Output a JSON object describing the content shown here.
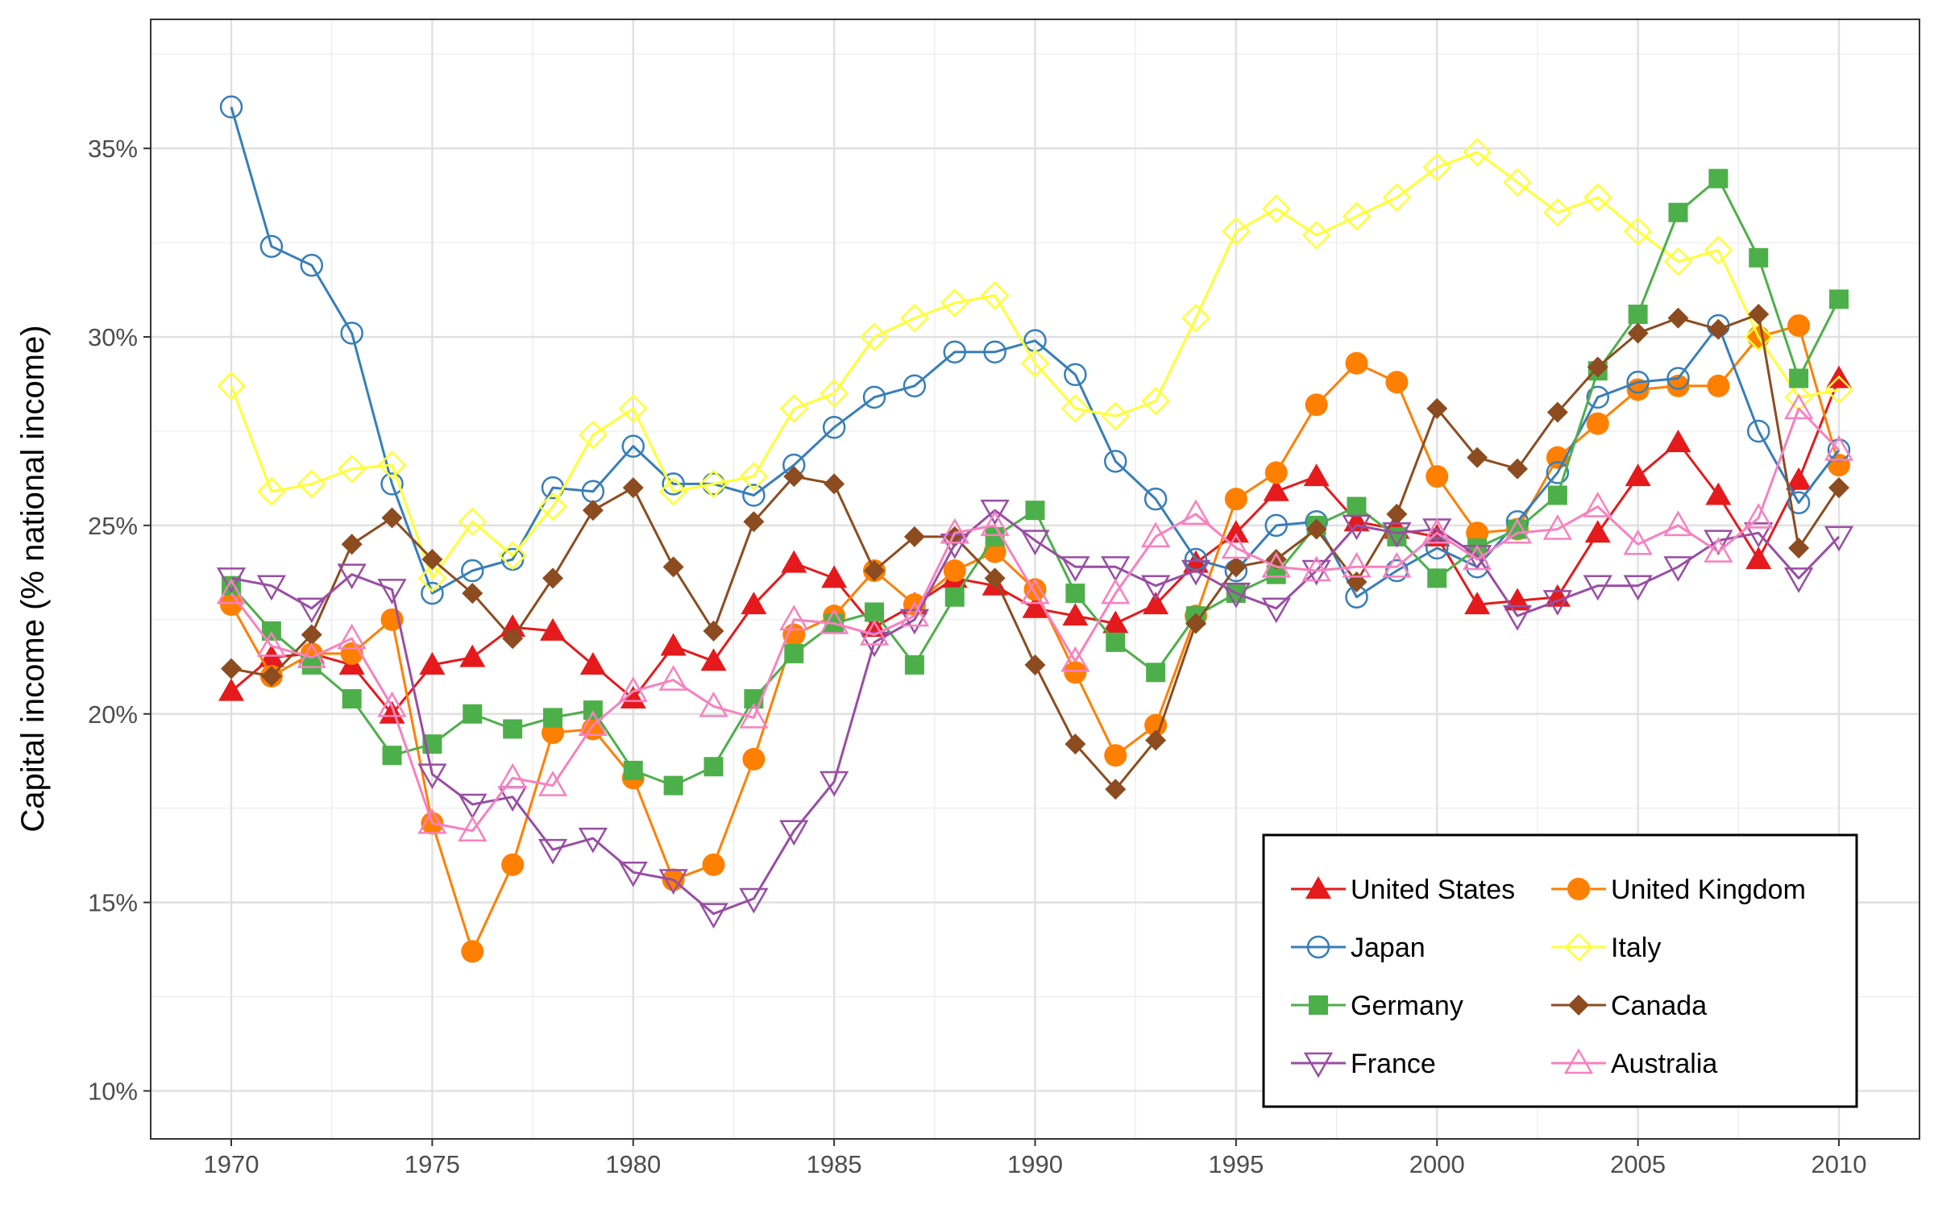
{
  "chart_data": {
    "type": "line",
    "title": "",
    "xlabel": "",
    "ylabel": "Capital income (% national income)",
    "xlim": [
      1968,
      2011
    ],
    "ylim": [
      9.0,
      38.0
    ],
    "x_ticks": [
      1970,
      1975,
      1980,
      1985,
      1990,
      1995,
      2000,
      2005,
      2010
    ],
    "x_tick_labels": [
      "1970",
      "1975",
      "1980",
      "1985",
      "1990",
      "1995",
      "2000",
      "2005",
      "2010"
    ],
    "y_ticks": [
      10,
      15,
      20,
      25,
      30,
      35
    ],
    "y_tick_labels": [
      "10%",
      "15%",
      "20%",
      "25%",
      "30%",
      "35%"
    ],
    "grid": true,
    "legend_position": "bottom-right",
    "x": [
      1970,
      1971,
      1972,
      1973,
      1974,
      1975,
      1976,
      1977,
      1978,
      1979,
      1980,
      1981,
      1982,
      1983,
      1984,
      1985,
      1986,
      1987,
      1988,
      1989,
      1990,
      1991,
      1992,
      1993,
      1994,
      1995,
      1996,
      1997,
      1998,
      1999,
      2000,
      2001,
      2002,
      2003,
      2004,
      2005,
      2006,
      2007,
      2008,
      2009,
      2010
    ],
    "series": [
      {
        "name": "United States",
        "color": "#E41A1C",
        "marker": "triangle-up-filled",
        "values": [
          20.6,
          21.5,
          21.6,
          21.3,
          20.0,
          21.3,
          21.5,
          22.3,
          22.2,
          21.3,
          20.4,
          21.8,
          21.4,
          22.9,
          24.0,
          23.6,
          22.3,
          22.9,
          23.6,
          23.4,
          22.8,
          22.6,
          22.4,
          22.9,
          24.0,
          24.8,
          25.9,
          26.3,
          25.1,
          24.9,
          24.7,
          22.9,
          23.0,
          23.1,
          24.8,
          26.3,
          27.2,
          25.8,
          24.1,
          26.2,
          28.9
        ]
      },
      {
        "name": "United Kingdom",
        "color": "#FF7F00",
        "marker": "circle-filled",
        "values": [
          22.9,
          21.0,
          21.6,
          21.6,
          22.5,
          17.1,
          13.7,
          16.0,
          19.5,
          19.6,
          18.3,
          15.6,
          16.0,
          18.8,
          22.1,
          22.6,
          23.8,
          22.9,
          23.8,
          24.3,
          23.3,
          21.1,
          18.9,
          19.7,
          22.6,
          25.7,
          26.4,
          28.2,
          29.3,
          28.8,
          26.3,
          24.8,
          24.9,
          26.8,
          27.7,
          28.6,
          28.7,
          28.7,
          30.0,
          30.3,
          26.6
        ]
      },
      {
        "name": "Japan",
        "color": "#377EB8",
        "marker": "circle-open",
        "values": [
          36.1,
          32.4,
          31.9,
          30.1,
          26.1,
          23.2,
          23.8,
          24.1,
          26.0,
          25.9,
          27.1,
          26.1,
          26.1,
          25.8,
          26.6,
          27.6,
          28.4,
          28.7,
          29.6,
          29.6,
          29.9,
          29.0,
          26.7,
          25.7,
          24.1,
          23.8,
          25.0,
          25.1,
          23.1,
          23.8,
          24.4,
          23.9,
          25.1,
          26.4,
          28.4,
          28.8,
          28.9,
          30.3,
          27.5,
          25.6,
          27.0
        ]
      },
      {
        "name": "Italy",
        "color": "#FFFF33",
        "marker": "diamond-open",
        "values": [
          28.7,
          25.9,
          26.1,
          26.5,
          26.6,
          23.6,
          25.1,
          24.2,
          25.5,
          27.4,
          28.1,
          25.9,
          26.1,
          26.3,
          28.1,
          28.5,
          30.0,
          30.5,
          30.9,
          31.1,
          29.3,
          28.1,
          27.9,
          28.3,
          30.5,
          32.8,
          33.4,
          32.7,
          33.2,
          33.7,
          34.5,
          34.9,
          34.1,
          33.3,
          33.7,
          32.8,
          32.0,
          32.3,
          30.0,
          28.4,
          28.6
        ]
      },
      {
        "name": "Germany",
        "color": "#4DAF4A",
        "marker": "square-filled",
        "values": [
          23.4,
          22.2,
          21.3,
          20.4,
          18.9,
          19.2,
          20.0,
          19.6,
          19.9,
          20.1,
          18.5,
          18.1,
          18.6,
          20.4,
          21.6,
          22.4,
          22.7,
          21.3,
          23.1,
          24.7,
          25.4,
          23.2,
          21.9,
          21.1,
          22.6,
          23.2,
          23.7,
          25.0,
          25.5,
          24.7,
          23.6,
          24.4,
          24.9,
          25.8,
          29.1,
          30.6,
          33.3,
          34.2,
          32.1,
          28.9,
          31.0
        ]
      },
      {
        "name": "Canada",
        "color": "#8C4C20",
        "marker": "diamond-filled",
        "values": [
          21.2,
          21.0,
          22.1,
          24.5,
          25.2,
          24.1,
          23.2,
          22.0,
          23.6,
          25.4,
          26.0,
          23.9,
          22.2,
          25.1,
          26.3,
          26.1,
          23.8,
          24.7,
          24.7,
          23.6,
          21.3,
          19.2,
          18.0,
          19.3,
          22.4,
          23.9,
          24.1,
          24.9,
          23.5,
          25.3,
          28.1,
          26.8,
          26.5,
          28.0,
          29.2,
          30.1,
          30.5,
          30.2,
          30.6,
          24.4,
          26.0
        ]
      },
      {
        "name": "France",
        "color": "#984EA3",
        "marker": "triangle-down-open",
        "values": [
          23.6,
          23.4,
          22.8,
          23.7,
          23.3,
          18.4,
          17.6,
          17.8,
          16.4,
          16.7,
          15.8,
          15.6,
          14.7,
          15.1,
          16.9,
          18.2,
          21.9,
          22.5,
          24.5,
          25.4,
          24.6,
          23.9,
          23.9,
          23.4,
          23.8,
          23.2,
          22.8,
          23.8,
          25.0,
          24.8,
          24.9,
          24.2,
          22.6,
          23.0,
          23.4,
          23.4,
          23.9,
          24.6,
          24.8,
          23.6,
          24.7
        ]
      },
      {
        "name": "Australia",
        "color": "#F781BF",
        "marker": "triangle-up-open",
        "values": [
          23.2,
          21.8,
          21.5,
          22.0,
          20.2,
          17.1,
          16.9,
          18.3,
          18.1,
          19.7,
          20.6,
          20.9,
          20.2,
          19.9,
          22.5,
          22.4,
          22.1,
          22.6,
          24.8,
          25.0,
          23.2,
          21.4,
          23.2,
          24.7,
          25.3,
          24.4,
          23.9,
          23.8,
          23.9,
          23.9,
          24.8,
          24.1,
          24.8,
          24.9,
          25.5,
          24.5,
          25.0,
          24.3,
          25.2,
          28.1,
          27.0
        ]
      }
    ]
  }
}
